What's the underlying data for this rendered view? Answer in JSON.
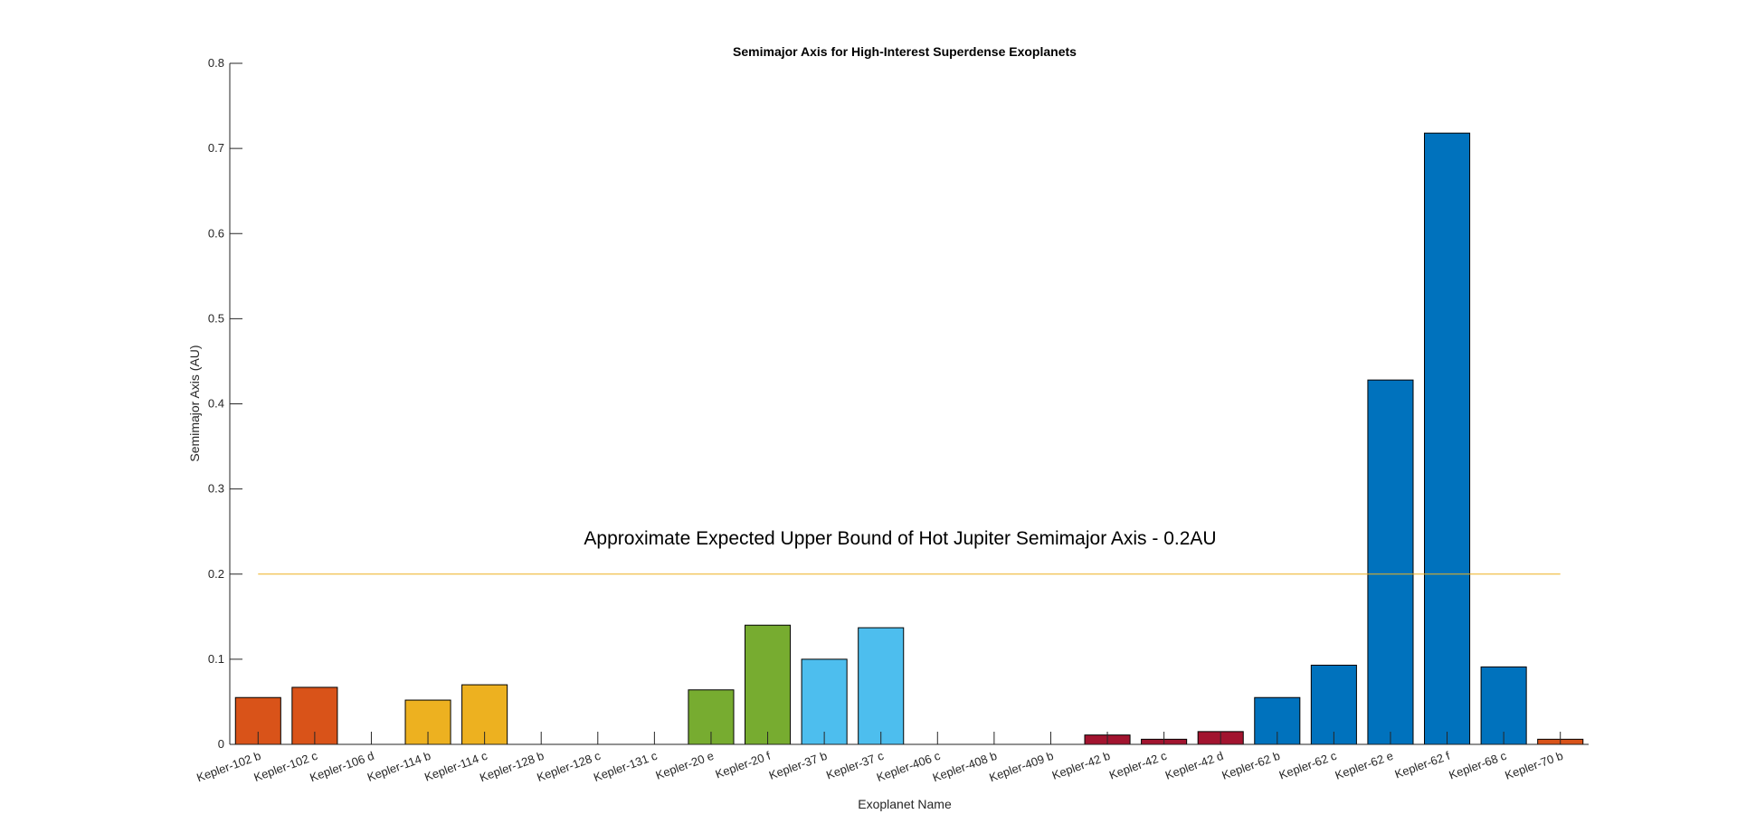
{
  "chart_data": {
    "type": "bar",
    "title": "Semimajor Axis for High-Interest Superdense Exoplanets",
    "xlabel": "Exoplanet Name",
    "ylabel": "Semimajor Axis (AU)",
    "ylim": [
      0,
      0.8
    ],
    "yticks": [
      "0",
      "0.1",
      "0.2",
      "0.3",
      "0.4",
      "0.5",
      "0.6",
      "0.7",
      "0.8"
    ],
    "categories": [
      "Kepler-102 b",
      "Kepler-102 c",
      "Kepler-106 d",
      "Kepler-114 b",
      "Kepler-114 c",
      "Kepler-128 b",
      "Kepler-128 c",
      "Kepler-131 c",
      "Kepler-20 e",
      "Kepler-20 f",
      "Kepler-37 b",
      "Kepler-37 c",
      "Kepler-406 c",
      "Kepler-408 b",
      "Kepler-409 b",
      "Kepler-42 b",
      "Kepler-42 c",
      "Kepler-42 d",
      "Kepler-62 b",
      "Kepler-62 c",
      "Kepler-62 e",
      "Kepler-62 f",
      "Kepler-68 c",
      "Kepler-70 b"
    ],
    "values": [
      0.055,
      0.067,
      0,
      0.052,
      0.07,
      0,
      0,
      0,
      0.064,
      0.14,
      0.1,
      0.137,
      0,
      0,
      0,
      0.011,
      0.006,
      0.015,
      0.055,
      0.093,
      0.428,
      0.718,
      0.091,
      0.006
    ],
    "bar_colors": [
      "#D95319",
      "#D95319",
      "#D95319",
      "#EDB120",
      "#EDB120",
      "#EDB120",
      "#EDB120",
      "#EDB120",
      "#77AC30",
      "#77AC30",
      "#4DBEEE",
      "#4DBEEE",
      "#4DBEEE",
      "#4DBEEE",
      "#4DBEEE",
      "#A2142F",
      "#A2142F",
      "#A2142F",
      "#0072BD",
      "#0072BD",
      "#0072BD",
      "#0072BD",
      "#0072BD",
      "#D95319"
    ],
    "reference_line": {
      "y": 0.2,
      "label": "Approximate Expected Upper Bound of Hot Jupiter Semimajor Axis - 0.2AU",
      "color": "#EDB120"
    },
    "grid": false,
    "legend": "none"
  }
}
